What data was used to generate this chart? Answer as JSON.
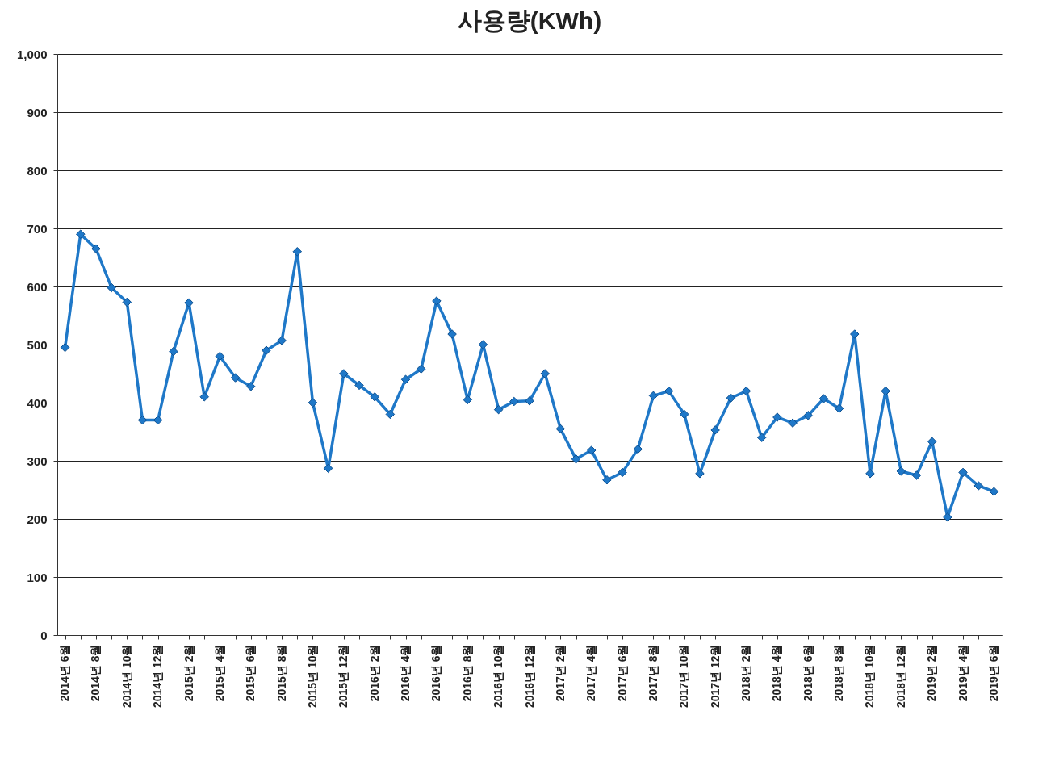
{
  "chart_data": {
    "type": "line",
    "title": "사용량(KWh)",
    "categories": [
      "2014년 6월",
      null,
      "2014년 8월",
      null,
      "2014년 10월",
      null,
      "2014년 12월",
      null,
      "2015년 2월",
      null,
      "2015년 4월",
      null,
      "2015년 6월",
      null,
      "2015년 8월",
      null,
      "2015년 10월",
      null,
      "2015년 12월",
      null,
      "2016년 2월",
      null,
      "2016년 4월",
      null,
      "2016년 6월",
      null,
      "2016년 8월",
      null,
      "2016년 10월",
      null,
      "2016년 12월",
      null,
      "2017년 2월",
      null,
      "2017년 4월",
      null,
      "2017년 6월",
      null,
      "2017년 8월",
      null,
      "2017년 10월",
      null,
      "2017년 12월",
      null,
      "2018년 2월",
      null,
      "2018년 4월",
      null,
      "2018년 6월",
      null,
      "2018년 8월",
      null,
      "2018년 10월",
      null,
      "2018년 12월",
      null,
      "2019년 2월",
      null,
      "2019년 4월",
      null,
      "2019년 6월"
    ],
    "series": [
      {
        "color": "#1f78c8",
        "values": [
          495,
          690,
          665,
          598,
          573,
          370,
          370,
          488,
          572,
          410,
          480,
          443,
          428,
          490,
          507,
          660,
          400,
          287,
          450,
          430,
          410,
          380,
          440,
          458,
          575,
          518,
          405,
          500,
          388,
          402,
          403,
          450,
          355,
          303,
          318,
          267,
          280,
          320,
          412,
          420,
          380,
          278,
          353,
          408,
          420,
          340,
          375,
          365,
          378,
          407,
          390,
          518,
          278,
          420,
          282,
          275,
          333,
          203,
          280,
          257,
          247
        ]
      }
    ],
    "ylim": [
      0,
      1000
    ],
    "yticks": [
      0,
      100,
      200,
      300,
      400,
      500,
      600,
      700,
      800,
      900,
      {
        "value": 1000,
        "label": "1,000"
      }
    ],
    "grid": "y",
    "marker": "diamond"
  }
}
